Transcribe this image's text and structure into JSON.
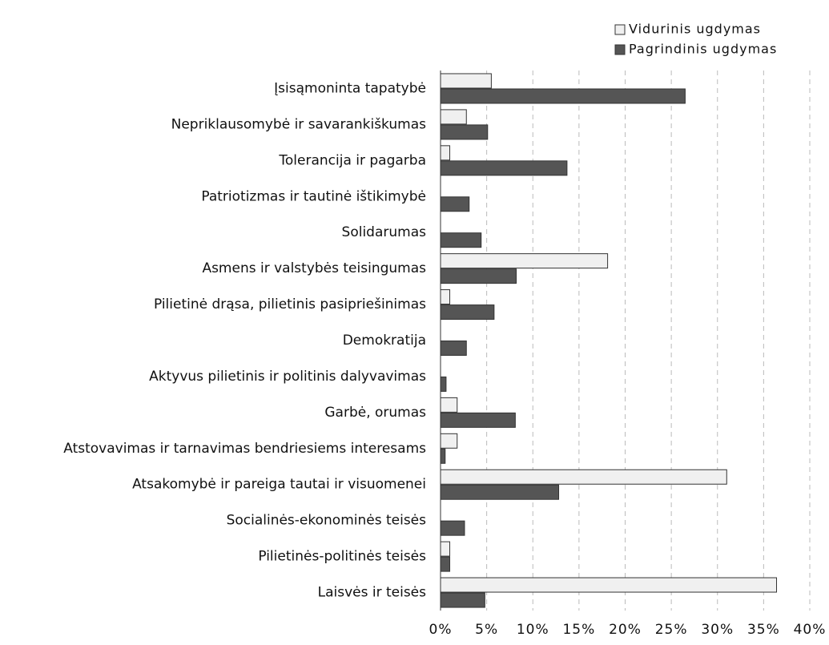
{
  "chart_data": {
    "type": "barh",
    "categories": [
      "Įsisąmoninta tapatybė",
      "Nepriklausomybė ir savarankiškumas",
      "Tolerancija ir  pagarba",
      "Patriotizmas ir tautinė ištikimybė",
      "Solidarumas",
      "Asmens ir valstybės teisingumas",
      "Pilietinė drąsa, pilietinis pasipriešinimas",
      "Demokratija",
      "Aktyvus pilietinis ir politinis dalyvavimas",
      "Garbė, orumas",
      "Atstovavimas ir tarnavimas bendriesiems interesams",
      "Atsakomybė ir pareiga tautai ir visuomenei",
      "Socialinės-ekonominės teisės",
      "Pilietinės-politinės teisės",
      "Laisvės ir teisės"
    ],
    "series": [
      {
        "name": "Vidurinis ugdymas",
        "color": "#f0f0f0",
        "values": [
          5.5,
          2.8,
          1.0,
          0,
          0,
          18.1,
          1.0,
          0,
          0,
          1.8,
          1.8,
          31.0,
          0,
          1.0,
          36.4
        ]
      },
      {
        "name": "Pagrindinis ugdymas",
        "color": "#555555",
        "values": [
          26.5,
          5.1,
          13.7,
          3.1,
          4.4,
          8.2,
          5.8,
          2.8,
          0.6,
          8.1,
          0.5,
          12.8,
          2.6,
          1.0,
          4.8
        ]
      }
    ],
    "xlim": [
      0,
      40
    ],
    "xticks": [
      {
        "value": 0,
        "label": "0%"
      },
      {
        "value": 5,
        "label": "5%"
      },
      {
        "value": 10,
        "label": "10%"
      },
      {
        "value": 15,
        "label": "15%"
      },
      {
        "value": 20,
        "label": "20%"
      },
      {
        "value": 25,
        "label": "25%"
      },
      {
        "value": 30,
        "label": "30%"
      },
      {
        "value": 35,
        "label": "35%"
      },
      {
        "value": 40,
        "label": "40%"
      }
    ],
    "grid": true,
    "legend": "top-right"
  }
}
